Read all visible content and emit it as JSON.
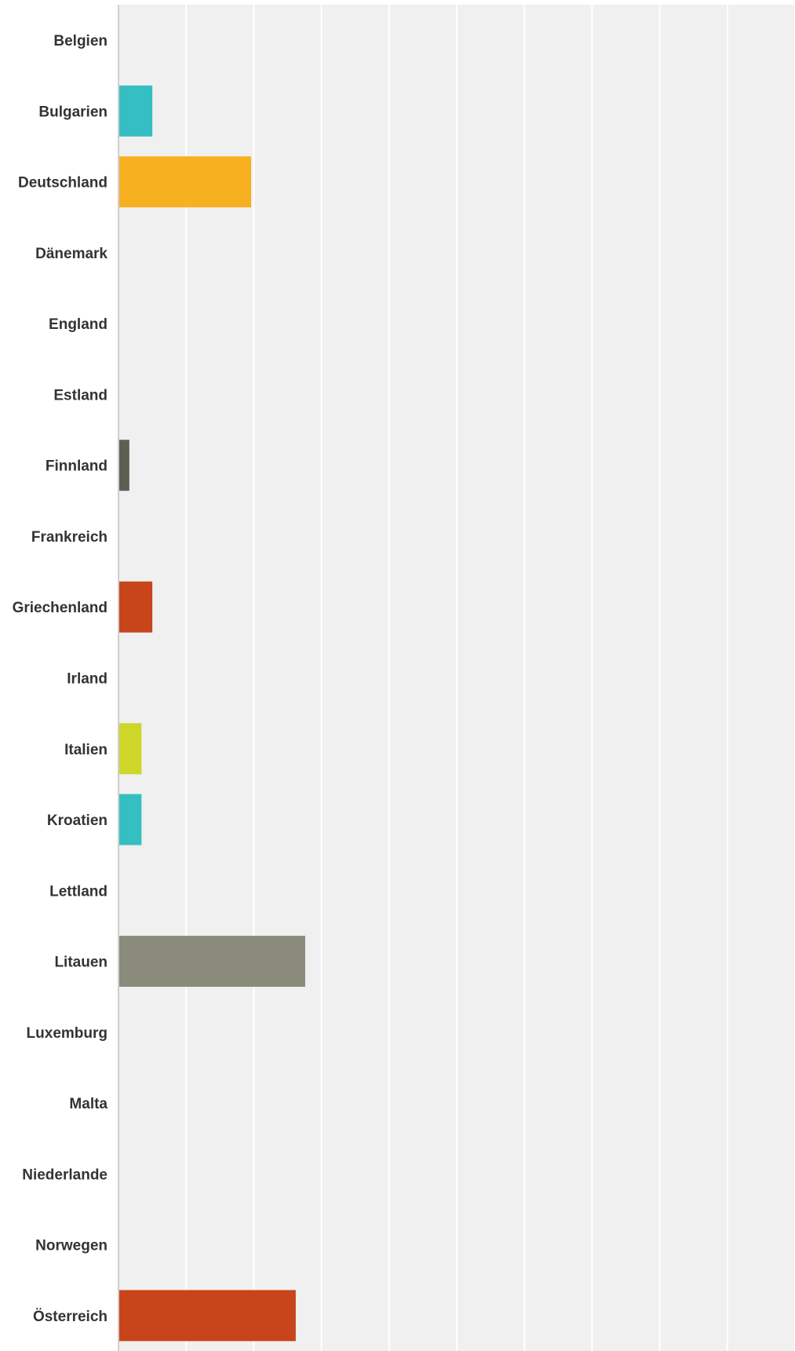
{
  "chart_data": {
    "type": "bar",
    "orientation": "horizontal",
    "categories": [
      "Belgien",
      "Bulgarien",
      "Deutschland",
      "Dänemark",
      "England",
      "Estland",
      "Finnland",
      "Frankreich",
      "Griechenland",
      "Irland",
      "Italien",
      "Kroatien",
      "Lettland",
      "Litauen",
      "Luxemburg",
      "Malta",
      "Niederlande",
      "Norwegen",
      "Österreich"
    ],
    "values": [
      0,
      2.5,
      9.8,
      0,
      0,
      0,
      0.8,
      0,
      2.5,
      0,
      1.7,
      1.7,
      0,
      13.8,
      0,
      0,
      0,
      0,
      13.1
    ],
    "colors": [
      "#35bfc2",
      "#35bfc2",
      "#f7b01f",
      "#35bfc2",
      "#35bfc2",
      "#35bfc2",
      "#5e5e53",
      "#35bfc2",
      "#c8441b",
      "#35bfc2",
      "#cdd629",
      "#35bfc2",
      "#35bfc2",
      "#8a8b7b",
      "#35bfc2",
      "#35bfc2",
      "#35bfc2",
      "#35bfc2",
      "#c8441b"
    ],
    "xlim": [
      0,
      50
    ],
    "grid": true,
    "gridline_count": 10,
    "plot_background": "#f0f0f0",
    "title": "",
    "xlabel": "",
    "ylabel": ""
  }
}
